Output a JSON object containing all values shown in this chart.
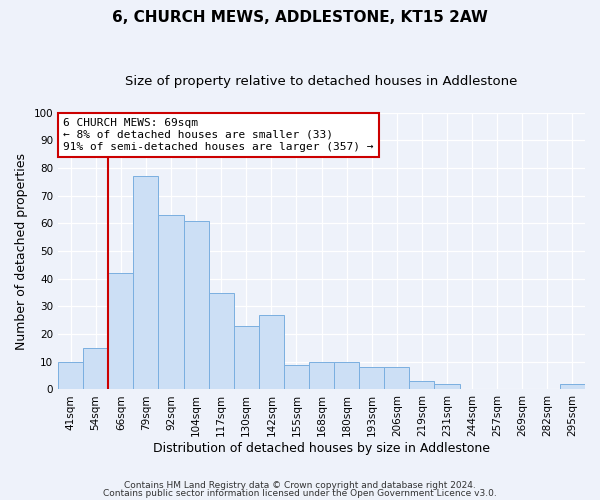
{
  "title": "6, CHURCH MEWS, ADDLESTONE, KT15 2AW",
  "subtitle": "Size of property relative to detached houses in Addlestone",
  "xlabel": "Distribution of detached houses by size in Addlestone",
  "ylabel": "Number of detached properties",
  "bin_labels": [
    "41sqm",
    "54sqm",
    "66sqm",
    "79sqm",
    "92sqm",
    "104sqm",
    "117sqm",
    "130sqm",
    "142sqm",
    "155sqm",
    "168sqm",
    "180sqm",
    "193sqm",
    "206sqm",
    "219sqm",
    "231sqm",
    "244sqm",
    "257sqm",
    "269sqm",
    "282sqm",
    "295sqm"
  ],
  "bar_values": [
    10,
    15,
    42,
    77,
    63,
    61,
    35,
    23,
    27,
    9,
    10,
    10,
    8,
    8,
    3,
    2,
    0,
    0,
    0,
    0,
    2
  ],
  "bar_color": "#ccdff5",
  "bar_edge_color": "#7aafe0",
  "vline_index": 2,
  "vline_color": "#cc0000",
  "ylim": [
    0,
    100
  ],
  "yticks": [
    0,
    10,
    20,
    30,
    40,
    50,
    60,
    70,
    80,
    90,
    100
  ],
  "annotation_title": "6 CHURCH MEWS: 69sqm",
  "annotation_line1": "← 8% of detached houses are smaller (33)",
  "annotation_line2": "91% of semi-detached houses are larger (357) →",
  "annotation_box_color": "#ffffff",
  "annotation_border_color": "#cc0000",
  "footer_line1": "Contains HM Land Registry data © Crown copyright and database right 2024.",
  "footer_line2": "Contains public sector information licensed under the Open Government Licence v3.0.",
  "title_fontsize": 11,
  "subtitle_fontsize": 9.5,
  "axis_label_fontsize": 9,
  "tick_fontsize": 7.5,
  "annotation_fontsize": 8,
  "footer_fontsize": 6.5,
  "background_color": "#eef2fa",
  "plot_background_color": "#eef2fa"
}
